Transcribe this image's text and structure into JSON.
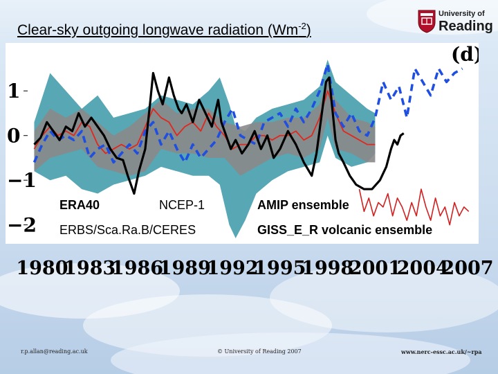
{
  "slide": {
    "title_main": "Clear-sky outgoing longwave radiation (Wm",
    "title_sup": "-2",
    "title_close": ")",
    "panel_label": "(d)"
  },
  "logo": {
    "line1": "University of",
    "line2": "Reading"
  },
  "footer": {
    "email": "r.p.allan@reading.ac.uk",
    "copyright": "© University of Reading 2007",
    "url": "www.nerc-essc.ac.uk/~rpa"
  },
  "colors": {
    "era40": "#000000",
    "ncep": "#1f4fe0",
    "amip": "#e0281e",
    "observations": "#d02020",
    "giss_band": "#4fa2b0",
    "amip_band": "#8a8a8a"
  },
  "chart_data": {
    "type": "line",
    "title": "Clear-sky outgoing longwave radiation (Wm-2)",
    "xlabel": "",
    "ylabel": "",
    "xlim": [
      1979,
      2007
    ],
    "ylim": [
      -2.3,
      1.95
    ],
    "x_ticks": [
      "1980",
      "1983",
      "1986",
      "1989",
      "1992",
      "1995",
      "1998",
      "2001",
      "2004",
      "2007"
    ],
    "y_ticks": [
      "1",
      "0",
      "−1",
      "−2"
    ],
    "y_tick_values": [
      1,
      0,
      -1,
      -2
    ],
    "legend": [
      "ERA40",
      "NCEP-1",
      "AMIP ensemble",
      "ERBS/Sca.Ra.B/CERES",
      "GISS_E_R volcanic ensemble"
    ],
    "series": [
      {
        "name": "ERA40",
        "style": "solid",
        "x": [
          1979.5,
          1979.9,
          1980.3,
          1980.7,
          1981.1,
          1981.5,
          1981.9,
          1982.3,
          1982.7,
          1983.1,
          1983.5,
          1983.9,
          1984.3,
          1984.7,
          1985.1,
          1985.4,
          1985.8,
          1986.1,
          1986.5,
          1986.8,
          1987.0,
          1987.3,
          1987.6,
          1988.0,
          1988.3,
          1988.6,
          1988.8,
          1989.1,
          1989.5,
          1989.9,
          1990.3,
          1990.7,
          1991.1,
          1991.3,
          1991.6,
          1991.9,
          1992.2,
          1992.6,
          1993.0,
          1993.4,
          1993.8,
          1994.2,
          1994.6,
          1995.0,
          1995.5,
          1996.0,
          1996.5,
          1997.0,
          1997.3,
          1997.6,
          1997.9,
          1998.1,
          1998.3,
          1998.5,
          1998.7,
          1999.0,
          1999.4,
          1999.8,
          2000.3,
          2000.8,
          2001.3,
          2001.7,
          2002.0,
          2002.2,
          2002.4,
          2002.6,
          2002.8
        ],
        "values": [
          -0.2,
          -0.05,
          0.3,
          0.1,
          -0.1,
          0.2,
          0.1,
          0.5,
          0.2,
          0.4,
          0.2,
          0.0,
          -0.3,
          -0.5,
          -0.55,
          -0.9,
          -1.3,
          -0.8,
          -0.3,
          0.7,
          1.4,
          1.0,
          0.7,
          1.3,
          0.9,
          0.6,
          0.5,
          0.7,
          0.3,
          0.8,
          0.5,
          0.2,
          0.8,
          0.3,
          0.0,
          -0.3,
          -0.1,
          -0.4,
          -0.2,
          0.1,
          -0.3,
          0.0,
          -0.5,
          -0.3,
          0.1,
          -0.2,
          -0.6,
          -0.9,
          -0.4,
          0.4,
          1.2,
          1.3,
          0.6,
          -0.1,
          -0.4,
          -0.6,
          -0.9,
          -1.1,
          -1.2,
          -1.2,
          -1.0,
          -0.7,
          -0.3,
          -0.1,
          -0.2,
          0.0,
          0.05
        ]
      },
      {
        "name": "NCEP-1",
        "style": "dashed",
        "x": [
          1979.5,
          1980.0,
          1980.5,
          1981.0,
          1981.5,
          1982.0,
          1982.5,
          1983.0,
          1983.5,
          1984.0,
          1984.5,
          1985.0,
          1985.5,
          1986.0,
          1986.5,
          1987.0,
          1987.5,
          1988.0,
          1988.5,
          1989.0,
          1989.5,
          1990.0,
          1990.5,
          1991.0,
          1991.5,
          1992.0,
          1992.5,
          1993.0,
          1993.5,
          1994.0,
          1994.5,
          1995.0,
          1995.5,
          1996.0,
          1996.5,
          1997.0,
          1997.5,
          1998.0,
          1998.5,
          1999.0,
          1999.5,
          2000.0,
          2000.5,
          2001.0,
          2001.5,
          2002.0,
          2002.5,
          2003.0,
          2003.5,
          2004.0,
          2004.5,
          2005.0,
          2005.5,
          2006.0,
          2006.5
        ],
        "values": [
          -0.6,
          -0.2,
          0.1,
          -0.1,
          0.0,
          -0.1,
          0.1,
          -0.5,
          -0.3,
          -0.2,
          -0.6,
          -0.4,
          -0.2,
          -0.4,
          0.1,
          0.3,
          -0.2,
          0.1,
          -0.3,
          -0.6,
          -0.2,
          -0.5,
          -0.3,
          -0.1,
          0.3,
          0.6,
          0.0,
          -0.1,
          -0.2,
          0.3,
          0.4,
          0.5,
          0.2,
          0.6,
          0.3,
          0.6,
          1.0,
          1.6,
          0.5,
          0.2,
          0.5,
          0.1,
          0.0,
          0.4,
          1.2,
          0.8,
          1.1,
          0.4,
          1.5,
          1.2,
          0.9,
          1.5,
          1.2,
          1.4,
          1.5
        ]
      },
      {
        "name": "AMIP ensemble",
        "style": "solid",
        "x": [
          1979.5,
          1980.0,
          1980.5,
          1981.0,
          1981.5,
          1982.0,
          1982.5,
          1983.0,
          1983.5,
          1984.0,
          1984.5,
          1985.0,
          1985.5,
          1986.0,
          1986.5,
          1987.0,
          1987.5,
          1988.0,
          1988.5,
          1989.0,
          1989.5,
          1990.0,
          1990.5,
          1991.0,
          1991.5,
          1992.0,
          1992.5,
          1993.0,
          1993.5,
          1994.0,
          1994.5,
          1995.0,
          1995.5,
          1996.0,
          1996.5,
          1997.0,
          1997.5,
          1998.0,
          1998.5,
          1999.0,
          1999.5,
          2000.0,
          2000.5,
          2001.0
        ],
        "values": [
          -0.3,
          0.0,
          0.2,
          0.0,
          0.1,
          0.0,
          0.3,
          0.2,
          -0.2,
          -0.4,
          -0.3,
          -0.2,
          -0.3,
          -0.2,
          0.2,
          0.6,
          0.4,
          0.3,
          0.0,
          0.2,
          0.3,
          0.1,
          0.5,
          0.2,
          0.0,
          -0.3,
          -0.2,
          -0.2,
          0.0,
          0.0,
          -0.1,
          0.0,
          0.0,
          0.1,
          -0.1,
          0.0,
          0.4,
          1.0,
          0.5,
          0.1,
          0.0,
          -0.1,
          -0.2,
          -0.2
        ]
      },
      {
        "name": "ERBS/Sca.Ra.B/CERES",
        "style": "solid",
        "x": [
          2000.0,
          2000.3,
          2000.6,
          2000.9,
          2001.2,
          2001.5,
          2001.8,
          2002.1,
          2002.4,
          2002.7,
          2003.0,
          2003.3,
          2003.6,
          2003.9,
          2004.2,
          2004.5,
          2004.8,
          2005.1,
          2005.4,
          2005.7,
          2006.0,
          2006.3,
          2006.6,
          2006.9
        ],
        "values": [
          -1.2,
          -1.7,
          -1.4,
          -1.8,
          -1.5,
          -1.6,
          -1.3,
          -1.8,
          -1.4,
          -1.6,
          -1.9,
          -1.5,
          -1.8,
          -1.2,
          -1.6,
          -1.9,
          -1.4,
          -1.8,
          -1.6,
          -2.0,
          -1.5,
          -1.8,
          -1.6,
          -1.7
        ]
      }
    ],
    "bands": [
      {
        "name": "GISS_E_R volcanic ensemble",
        "x": [
          1979.5,
          1980.5,
          1981.5,
          1982.5,
          1983.5,
          1984.5,
          1985.5,
          1986.5,
          1987.5,
          1988.5,
          1989.5,
          1990.5,
          1991.2,
          1991.8,
          1992.2,
          1992.8,
          1993.5,
          1994.5,
          1995.5,
          1996.5,
          1997.5,
          1998.0,
          1998.5,
          1999.5,
          2000.5,
          2001.0
        ],
        "upper": [
          0.3,
          1.4,
          1.0,
          0.6,
          0.9,
          0.4,
          0.5,
          0.6,
          0.9,
          0.8,
          0.7,
          1.0,
          1.3,
          0.7,
          0.2,
          0.1,
          0.4,
          0.6,
          0.7,
          0.8,
          1.1,
          1.7,
          1.2,
          0.9,
          0.6,
          0.5
        ],
        "lower": [
          -0.8,
          -1.0,
          -0.9,
          -1.2,
          -1.3,
          -1.1,
          -1.0,
          -0.9,
          -0.7,
          -0.8,
          -0.9,
          -0.9,
          -1.1,
          -2.0,
          -2.3,
          -1.9,
          -1.3,
          -1.0,
          -0.8,
          -0.7,
          -0.6,
          0.0,
          -0.5,
          -0.7,
          -0.6,
          -0.4
        ]
      },
      {
        "name": "AMIP ensemble range",
        "x": [
          1979.5,
          1980.5,
          1981.5,
          1982.5,
          1983.5,
          1984.5,
          1985.5,
          1986.5,
          1987.5,
          1988.5,
          1989.5,
          1990.5,
          1991.5,
          1992.5,
          1993.5,
          1994.5,
          1995.5,
          1996.5,
          1997.5,
          1998.0,
          1998.5,
          1999.5,
          2000.5,
          2001.0
        ],
        "upper": [
          0.1,
          0.6,
          0.4,
          0.6,
          0.3,
          0.0,
          0.2,
          0.5,
          0.8,
          0.5,
          0.6,
          0.6,
          0.3,
          0.2,
          0.3,
          0.3,
          0.4,
          0.4,
          0.7,
          1.3,
          0.8,
          0.4,
          0.3,
          0.2
        ],
        "lower": [
          -0.8,
          -0.5,
          -0.4,
          -0.3,
          -0.7,
          -0.8,
          -0.9,
          -0.8,
          -0.3,
          -0.4,
          -0.4,
          -0.5,
          -0.5,
          -0.9,
          -0.7,
          -0.5,
          -0.4,
          -0.5,
          -0.3,
          0.4,
          -0.3,
          -0.4,
          -0.6,
          -0.6
        ]
      }
    ]
  }
}
